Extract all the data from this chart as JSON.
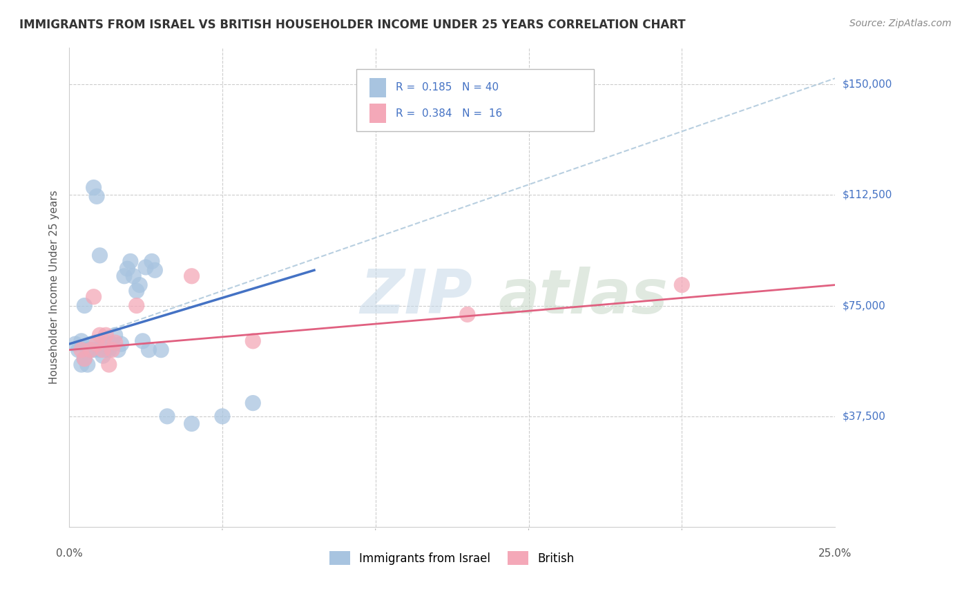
{
  "title": "IMMIGRANTS FROM ISRAEL VS BRITISH HOUSEHOLDER INCOME UNDER 25 YEARS CORRELATION CHART",
  "source": "Source: ZipAtlas.com",
  "ylabel": "Householder Income Under 25 years",
  "legend_label1": "Immigrants from Israel",
  "legend_label2": "British",
  "r1": 0.185,
  "n1": 40,
  "r2": 0.384,
  "n2": 16,
  "xlim": [
    0.0,
    0.25
  ],
  "ylim": [
    0,
    162500
  ],
  "blue_dot_color": "#a8c4e0",
  "blue_line_color": "#4472c4",
  "pink_dot_color": "#f4a8b8",
  "pink_line_color": "#e06080",
  "dashed_line_color": "#b8cfe0",
  "grid_color": "#cccccc",
  "ytick_values": [
    37500,
    75000,
    112500,
    150000
  ],
  "ytick_labels": [
    "$37,500",
    "$75,000",
    "$112,500",
    "$150,000"
  ],
  "xtick_values": [
    0.0,
    0.05,
    0.1,
    0.15,
    0.2,
    0.25
  ],
  "blue_line_x0": 0.0,
  "blue_line_y0": 62000,
  "blue_line_x1": 0.08,
  "blue_line_y1": 87000,
  "pink_line_x0": 0.0,
  "pink_line_y0": 60000,
  "pink_line_x1": 0.25,
  "pink_line_y1": 82000,
  "dashed_line_x0": 0.0,
  "dashed_line_y0": 62000,
  "dashed_line_x1": 0.25,
  "dashed_line_y1": 152000,
  "israel_x": [
    0.002,
    0.003,
    0.004,
    0.004,
    0.005,
    0.005,
    0.006,
    0.006,
    0.007,
    0.007,
    0.008,
    0.008,
    0.009,
    0.01,
    0.01,
    0.011,
    0.011,
    0.012,
    0.012,
    0.013,
    0.014,
    0.015,
    0.016,
    0.017,
    0.018,
    0.019,
    0.02,
    0.021,
    0.022,
    0.023,
    0.024,
    0.025,
    0.026,
    0.027,
    0.028,
    0.03,
    0.032,
    0.04,
    0.05,
    0.06
  ],
  "israel_y": [
    62000,
    60000,
    63000,
    55000,
    75000,
    57000,
    60000,
    55000,
    60000,
    62000,
    115000,
    60000,
    112000,
    92000,
    60000,
    62000,
    58000,
    62500,
    60000,
    60000,
    62000,
    65000,
    60000,
    62000,
    85000,
    87500,
    90000,
    85000,
    80000,
    82000,
    63000,
    88000,
    60000,
    90000,
    87000,
    60000,
    37500,
    35000,
    37500,
    42000
  ],
  "british_x": [
    0.004,
    0.005,
    0.007,
    0.008,
    0.009,
    0.01,
    0.011,
    0.012,
    0.013,
    0.014,
    0.015,
    0.022,
    0.04,
    0.06,
    0.13,
    0.2
  ],
  "british_y": [
    60000,
    57000,
    60000,
    78000,
    62000,
    65000,
    60000,
    65000,
    55000,
    60000,
    62500,
    75000,
    85000,
    63000,
    72000,
    82000
  ],
  "watermark_zip": "ZIP",
  "watermark_atlas": "atlas",
  "watermark_color_zip": "#c5d8e8",
  "watermark_color_atlas": "#c8d8c8"
}
